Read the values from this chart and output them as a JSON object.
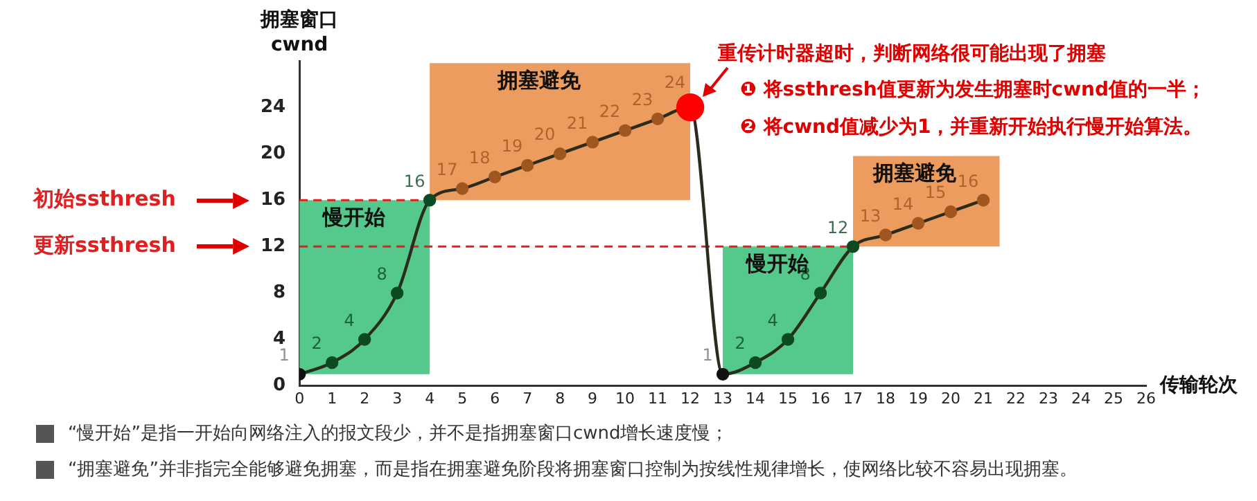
{
  "chart_data": {
    "type": "line",
    "xlabel": "传输轮次",
    "ylabel": "拥塞窗口 cwnd",
    "x": [
      0,
      1,
      2,
      3,
      4,
      5,
      6,
      7,
      8,
      9,
      10,
      11,
      12,
      13,
      14,
      15,
      16,
      17,
      18,
      19,
      20,
      21
    ],
    "series": [
      {
        "color": "#2b2b1e",
        "colors": [
          "#111111",
          "#0b4a22",
          "#0b4a22",
          "#0b4a22",
          "#0b4a22",
          "#a0561f",
          "#a0561f",
          "#a0561f",
          "#a0561f",
          "#a0561f",
          "#a0561f",
          "#a0561f",
          "#ff0000",
          "#111111",
          "#0b4a22",
          "#0b4a22",
          "#0b4a22",
          "#0b4a22",
          "#a0561f",
          "#a0561f",
          "#a0561f",
          "#a0561f"
        ],
        "values": [
          1,
          2,
          4,
          8,
          16,
          17,
          18,
          19,
          20,
          21,
          22,
          23,
          24,
          1,
          2,
          4,
          8,
          12,
          13,
          14,
          15,
          16
        ]
      }
    ],
    "xlim": [
      0,
      26
    ],
    "xticks": [
      0,
      1,
      2,
      3,
      4,
      5,
      6,
      7,
      8,
      9,
      10,
      11,
      12,
      13,
      14,
      15,
      16,
      17,
      18,
      19,
      20,
      21,
      22,
      23,
      24,
      25,
      26
    ],
    "ylim": [
      0,
      28
    ],
    "yticks": [
      0,
      4,
      8,
      12,
      16,
      20,
      24
    ],
    "grid": false,
    "legend": false,
    "marker": "circle",
    "line_style": "solid",
    "data_labels": true,
    "ref_lines": [
      {
        "axis": "y",
        "value": 16,
        "label": "初始ssthresh",
        "color": "#e02020",
        "line_style": "dashed"
      },
      {
        "axis": "y",
        "value": 12,
        "label": "更新ssthresh",
        "color": "#e02020",
        "line_style": "dashed"
      }
    ],
    "bands": [
      {
        "axis": "x",
        "from": 0,
        "to": 4,
        "label": "慢开始",
        "color": "#55c98c"
      },
      {
        "axis": "x",
        "from": 4,
        "to": 12,
        "label": "拥塞避免",
        "color": "#eb9c5e"
      },
      {
        "axis": "x",
        "from": 13,
        "to": 17,
        "label": "慢开始",
        "color": "#55c98c"
      },
      {
        "axis": "x",
        "from": 17,
        "to": 21.5,
        "label": "拥塞避免",
        "color": "#eb9c5e"
      }
    ],
    "annotations": [
      {
        "text": "重传计时器超时，判断网络很可能出现了拥塞",
        "x": 12,
        "y": 24
      },
      "❶ 将ssthresh值更新为发生拥塞时cwnd值的一半；",
      "❷ 将cwnd值减少为1，并重新开始执行慢开始算法。",
      "“慢开始”是指一开始向网络注入的报文段少，并不是指拥塞窗口cwnd增长速度慢；",
      "“拥塞避免”并非指完全能够避免拥塞，而是指在拥塞避免阶段将拥塞窗口控制为按线性规律增长，使网络比较不容易出现拥塞。"
    ]
  }
}
